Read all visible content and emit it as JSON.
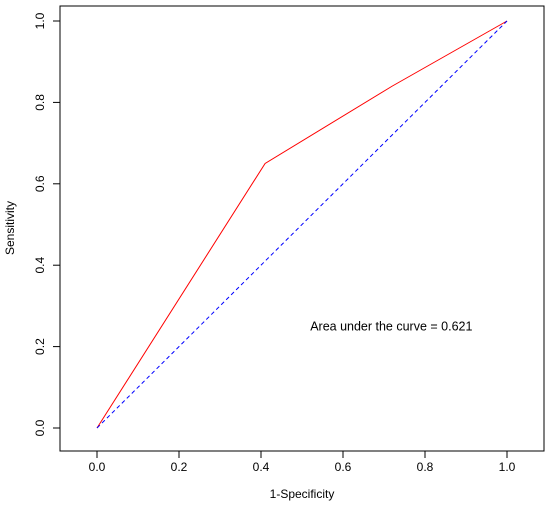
{
  "chart_data": {
    "type": "line",
    "xlabel": "1-Specificity",
    "ylabel": "Sensitivity",
    "xlim": [
      0,
      1
    ],
    "ylim": [
      0,
      1
    ],
    "x_ticks": [
      "0.0",
      "0.2",
      "0.4",
      "0.6",
      "0.8",
      "1.0"
    ],
    "y_ticks": [
      "0.0",
      "0.2",
      "0.4",
      "0.6",
      "0.8",
      "1.0"
    ],
    "grid": false,
    "series": [
      {
        "color": "#ff0000",
        "line_style": "solid",
        "x": [
          0,
          0.41,
          0.72,
          1
        ],
        "y": [
          0,
          0.65,
          0.84,
          1
        ]
      },
      {
        "color": "#0000ff",
        "line_style": "dashed",
        "x": [
          0,
          1
        ],
        "y": [
          0,
          1
        ]
      }
    ],
    "annotations": [
      {
        "text": "Area under the curve = 0.621",
        "x": 0.52,
        "y": 0.25
      }
    ]
  }
}
